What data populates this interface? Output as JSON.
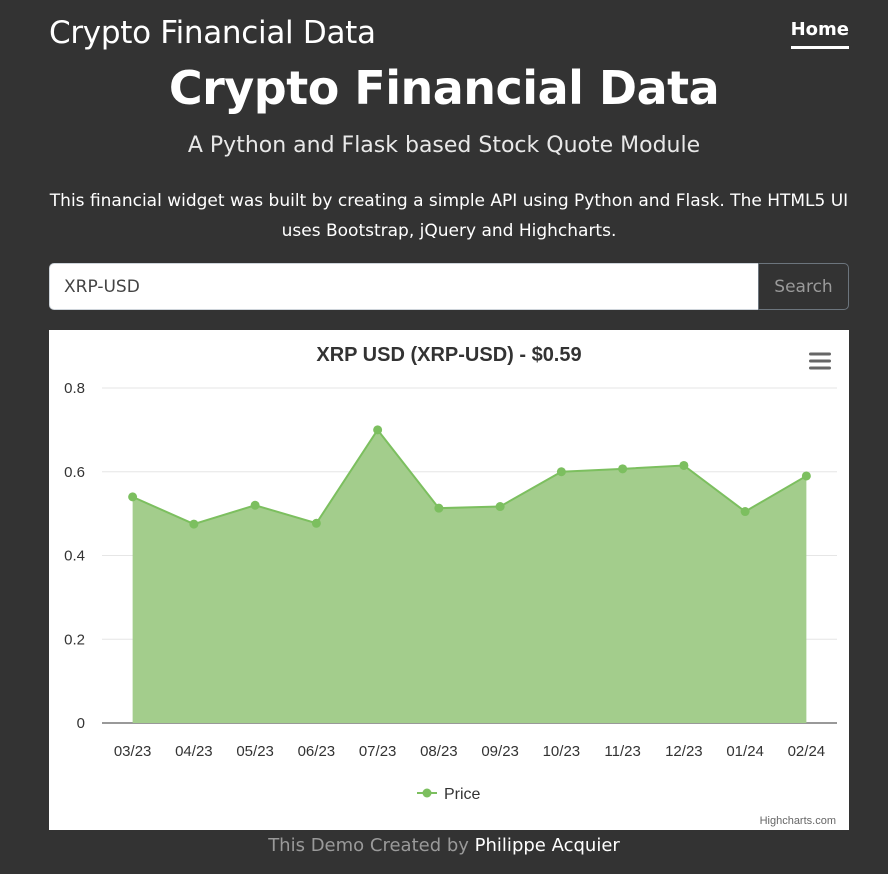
{
  "navbar": {
    "brand": "Crypto Financial Data",
    "home_label": "Home"
  },
  "hero": {
    "title": "Crypto Financial Data",
    "subtitle": "A Python and Flask based Stock Quote Module",
    "description": "This financial widget was built by creating a simple API using Python and Flask. The HTML5 UI uses Bootstrap, jQuery and Highcharts."
  },
  "search": {
    "value": "XRP-USD",
    "button_label": "Search"
  },
  "chart_menu_icon": "hamburger-menu-icon",
  "colors": {
    "page_background": "#333333",
    "series_line": "#7cbf5f",
    "series_fill": "#a3cd8c"
  },
  "chart_data": {
    "type": "area",
    "title": "XRP USD (XRP-USD) - $0.59",
    "categories": [
      "03/23",
      "04/23",
      "05/23",
      "06/23",
      "07/23",
      "08/23",
      "09/23",
      "10/23",
      "11/23",
      "12/23",
      "01/24",
      "02/24"
    ],
    "series": [
      {
        "name": "Price",
        "values": [
          0.54,
          0.475,
          0.52,
          0.477,
          0.7,
          0.513,
          0.517,
          0.6,
          0.607,
          0.615,
          0.505,
          0.59
        ]
      }
    ],
    "ylim": [
      0,
      0.8
    ],
    "yticks": [
      "0",
      "0.2",
      "0.4",
      "0.6",
      "0.8"
    ],
    "grid": true,
    "legend": "bottom-center",
    "credits": "Highcharts.com"
  },
  "footer": {
    "prefix": "This Demo Created by",
    "author": "Philippe Acquier"
  }
}
